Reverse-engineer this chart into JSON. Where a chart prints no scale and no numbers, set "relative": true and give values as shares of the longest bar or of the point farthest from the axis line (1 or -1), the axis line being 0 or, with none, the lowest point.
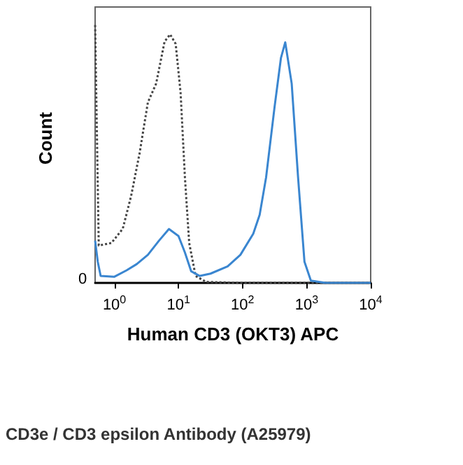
{
  "chart_data": {
    "type": "line",
    "relative": true,
    "xlabel": "Human CD3 (OKT3) APC",
    "ylabel": "Count",
    "log": "x",
    "xlim": [
      0.5,
      10000
    ],
    "xticks": [
      {
        "value": 1,
        "label": "10$^{0}$"
      },
      {
        "value": 10,
        "label": "10$^{1}$"
      },
      {
        "value": 100,
        "label": "10$^{2}$"
      },
      {
        "value": 1000,
        "label": "10$^{3}$"
      },
      {
        "value": 10000,
        "label": "10$^{4}$"
      }
    ],
    "grid": false,
    "marker": "none",
    "annotations": [
      "0",
      "CD3e / CD3 epsilon Antibody (A25979)"
    ],
    "series": [
      {
        "color": "#444444",
        "line_style": "dotted",
        "x": [
          0.5,
          0.57,
          0.9,
          1.35,
          1.82,
          2.46,
          3.33,
          4.48,
          6.07,
          7.4,
          9.05,
          10.8,
          12.6,
          14.7,
          18.5,
          27,
          92.6,
          10000
        ],
        "values": [
          1.0,
          0.145,
          0.155,
          0.21,
          0.336,
          0.5,
          0.7,
          0.773,
          0.936,
          0.964,
          0.927,
          0.736,
          0.41,
          0.155,
          0.027,
          0.004,
          0,
          0
        ]
      },
      {
        "color": "#3a86d0",
        "line_style": "solid",
        "x": [
          0.5,
          0.55,
          0.61,
          1,
          1.55,
          2.23,
          3.33,
          4.97,
          7.1,
          10,
          12.6,
          15.8,
          21.5,
          31.6,
          58.5,
          92.6,
          147,
          185,
          233,
          316,
          398,
          464,
          585,
          736,
          926,
          1166,
          2000,
          10000
        ],
        "values": [
          0.164,
          0.082,
          0.027,
          0.024,
          0.049,
          0.073,
          0.109,
          0.164,
          0.209,
          0.182,
          0.118,
          0.045,
          0.027,
          0.036,
          0.064,
          0.109,
          0.191,
          0.264,
          0.409,
          0.682,
          0.873,
          0.933,
          0.773,
          0.409,
          0.082,
          0.009,
          0,
          0
        ]
      }
    ]
  }
}
